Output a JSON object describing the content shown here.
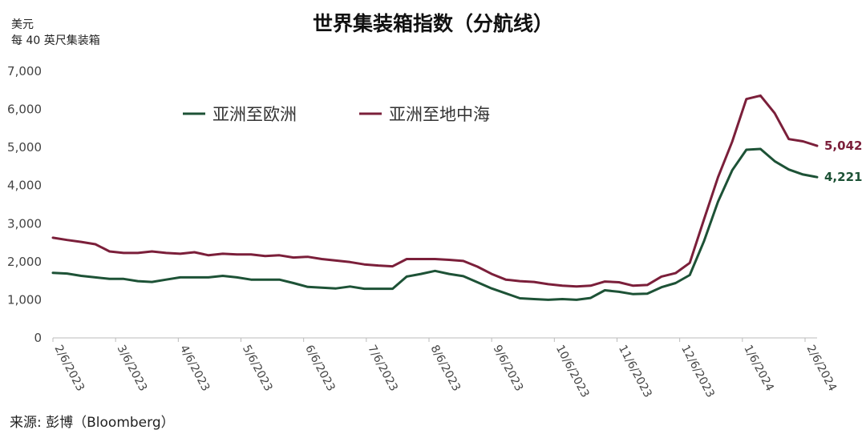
{
  "chart_data": {
    "type": "line",
    "title": "世界集装箱指数（分航线）",
    "ylabel_line1": "美元",
    "ylabel_line2": "每 40 英尺集装箱",
    "ylim": [
      0,
      7000
    ],
    "yticks": [
      "0",
      "1,000",
      "2,000",
      "3,000",
      "4,000",
      "5,000",
      "6,000",
      "7,000"
    ],
    "ytick_values": [
      0,
      1000,
      2000,
      3000,
      4000,
      5000,
      6000,
      7000
    ],
    "xticks": [
      "2/6/2023",
      "3/6/2023",
      "4/6/2023",
      "5/6/2023",
      "6/6/2023",
      "7/6/2023",
      "8/6/2023",
      "9/6/2023",
      "10/6/2023",
      "11/6/2023",
      "12/6/2023",
      "1/6/2024",
      "2/6/2024"
    ],
    "grid": false,
    "legend_position": "top-left",
    "series": [
      {
        "name": "亚洲至欧洲",
        "color": "#1d5236",
        "end_label": "4,221",
        "values": [
          1710,
          1690,
          1630,
          1590,
          1550,
          1550,
          1490,
          1470,
          1530,
          1590,
          1590,
          1590,
          1630,
          1590,
          1530,
          1530,
          1530,
          1440,
          1340,
          1320,
          1300,
          1350,
          1290,
          1290,
          1290,
          1610,
          1680,
          1760,
          1680,
          1620,
          1460,
          1300,
          1170,
          1040,
          1020,
          1000,
          1020,
          1000,
          1050,
          1250,
          1210,
          1150,
          1160,
          1330,
          1440,
          1650,
          2530,
          3580,
          4400,
          4940,
          4960,
          4640,
          4420,
          4290,
          4221
        ]
      },
      {
        "name": "亚洲至地中海",
        "color": "#7b1f3a",
        "end_label": "5,042",
        "values": [
          2630,
          2570,
          2520,
          2460,
          2270,
          2230,
          2230,
          2270,
          2230,
          2210,
          2250,
          2170,
          2210,
          2190,
          2190,
          2150,
          2170,
          2110,
          2130,
          2070,
          2030,
          1990,
          1930,
          1900,
          1880,
          2070,
          2070,
          2070,
          2050,
          2020,
          1870,
          1680,
          1530,
          1490,
          1470,
          1410,
          1370,
          1350,
          1370,
          1480,
          1460,
          1370,
          1390,
          1610,
          1700,
          1970,
          3100,
          4220,
          5150,
          6270,
          6360,
          5900,
          5220,
          5160,
          5042
        ]
      }
    ]
  },
  "source": "来源: 彭博（Bloomberg）"
}
